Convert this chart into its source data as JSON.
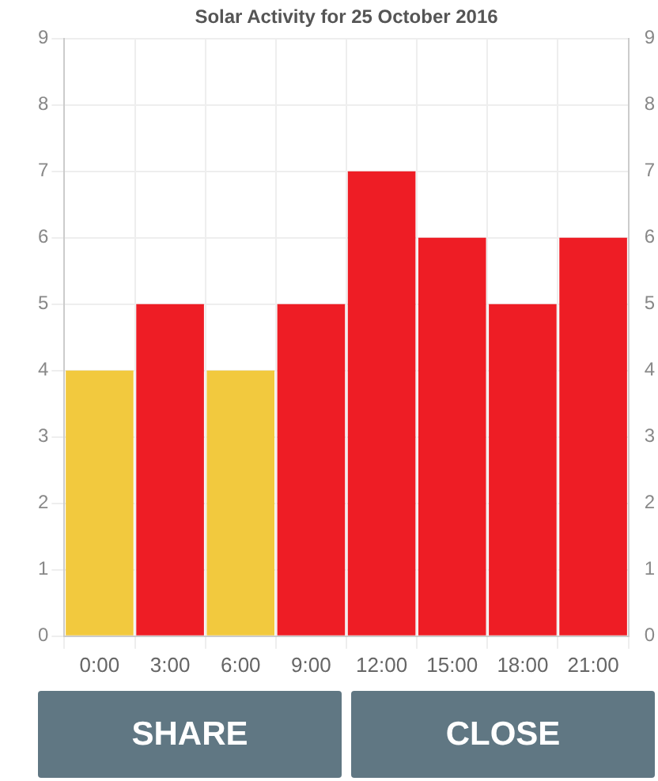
{
  "chart_data": {
    "type": "bar",
    "title": "Solar Activity for 25 October 2016",
    "categories": [
      "0:00",
      "3:00",
      "6:00",
      "9:00",
      "12:00",
      "15:00",
      "18:00",
      "21:00"
    ],
    "values": [
      4,
      5,
      4,
      5,
      7,
      6,
      5,
      6
    ],
    "colors": [
      "#f2c93e",
      "#ee1d25",
      "#f2c93e",
      "#ee1d25",
      "#ee1d25",
      "#ee1d25",
      "#ee1d25",
      "#ee1d25"
    ],
    "ylim": [
      0,
      9
    ],
    "yticks": [
      0,
      1,
      2,
      3,
      4,
      5,
      6,
      7,
      8,
      9
    ],
    "y2lim": [
      0,
      9
    ],
    "y2ticks": [
      0,
      1,
      2,
      3,
      4,
      5,
      6,
      7,
      8,
      9
    ],
    "grid": true,
    "legend": false,
    "annotations": [
      "SHARE",
      "CLOSE"
    ]
  }
}
